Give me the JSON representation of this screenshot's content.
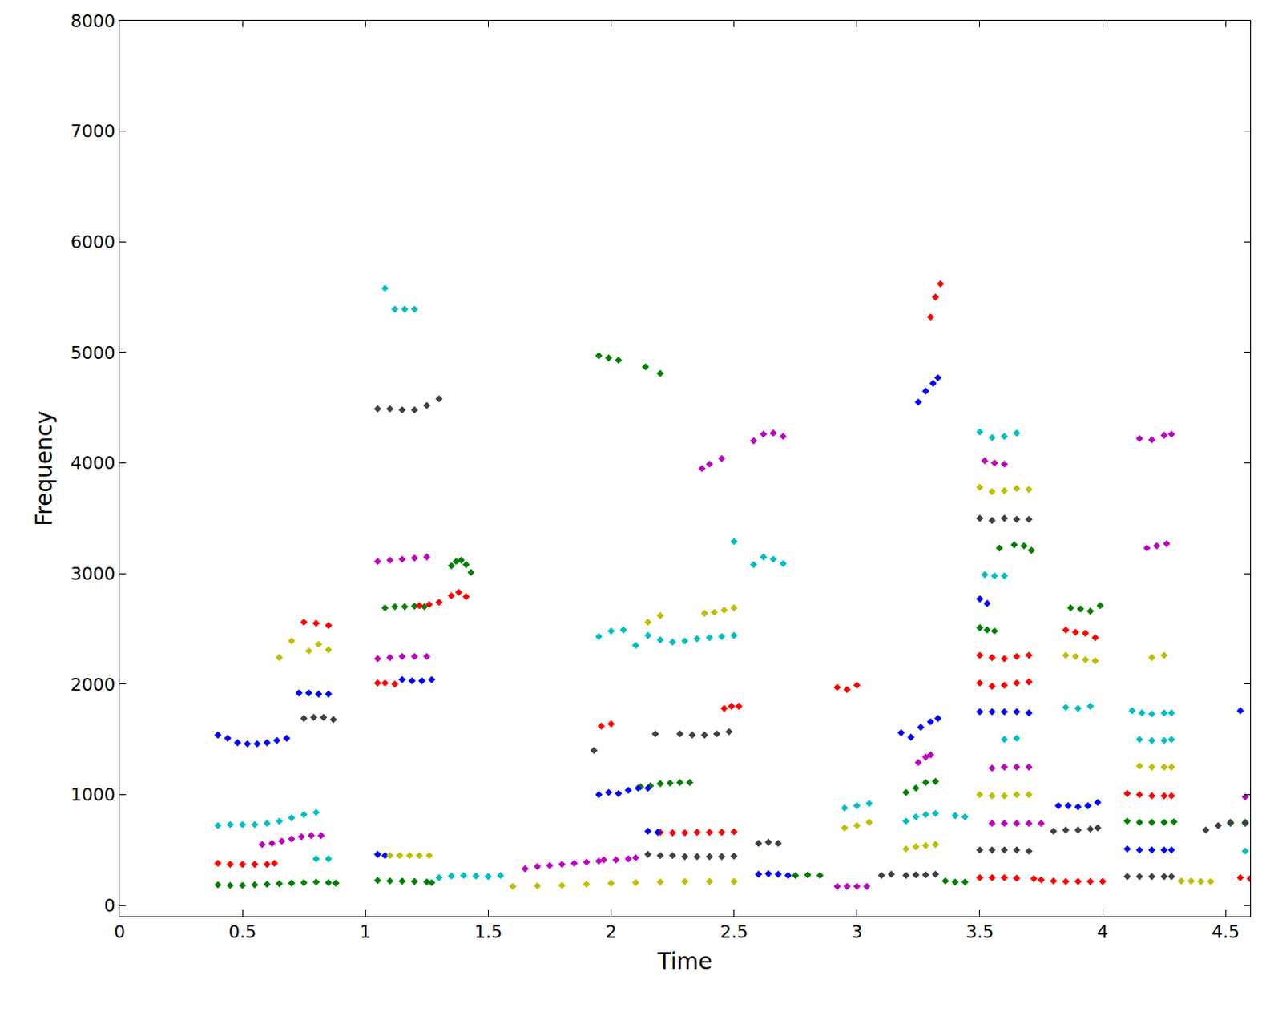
{
  "chart_data": {
    "type": "scatter",
    "x_label": "Time",
    "y_label": "Frequency",
    "xlim": [
      0,
      4.6
    ],
    "ylim": [
      -100,
      8000
    ],
    "xticks": [
      0,
      0.5,
      1,
      1.5,
      2,
      2.5,
      3,
      3.5,
      4,
      4.5
    ],
    "yticks": [
      0,
      1000,
      2000,
      3000,
      4000,
      5000,
      6000,
      7000,
      8000
    ],
    "grid": false,
    "marker": "diamond",
    "series": [
      {
        "color": "#008000",
        "x": [
          0.4,
          0.45,
          0.5,
          0.55,
          0.6,
          0.65,
          0.7,
          0.75,
          0.8,
          0.85,
          0.88,
          1.05,
          1.1,
          1.15,
          1.2,
          1.25,
          1.27,
          1.08,
          1.12,
          1.16,
          1.2,
          1.24,
          1.35,
          1.37,
          1.39,
          1.41,
          1.43,
          2.12,
          2.16,
          2.2,
          2.24,
          2.28,
          2.32,
          2.75,
          2.8,
          2.85,
          3.2,
          3.24,
          3.28,
          3.32,
          3.36,
          3.4,
          3.44,
          3.5,
          3.53,
          3.56,
          3.58,
          3.64,
          3.68,
          3.71,
          3.87,
          3.91,
          3.95,
          3.99,
          1.95,
          1.99,
          2.03,
          2.14,
          2.2,
          4.1,
          4.15,
          4.2,
          4.25,
          4.29,
          4.52,
          4.58
        ],
        "values": [
          185,
          180,
          180,
          185,
          190,
          195,
          200,
          205,
          210,
          205,
          200,
          225,
          220,
          218,
          215,
          212,
          205,
          2690,
          2700,
          2700,
          2705,
          2700,
          3070,
          3110,
          3120,
          3080,
          3010,
          1070,
          1080,
          1100,
          1105,
          1110,
          1110,
          270,
          275,
          270,
          1020,
          1060,
          1110,
          1120,
          220,
          210,
          210,
          2510,
          2490,
          2480,
          3230,
          3260,
          3250,
          3210,
          2690,
          2680,
          2660,
          2710,
          4970,
          4950,
          4930,
          4870,
          4810,
          760,
          750,
          750,
          750,
          755,
          740,
          750
        ]
      },
      {
        "color": "#ff0000",
        "x": [
          0.4,
          0.45,
          0.5,
          0.55,
          0.6,
          0.63,
          0.75,
          0.8,
          0.85,
          1.05,
          1.08,
          1.12,
          1.22,
          1.26,
          1.3,
          1.35,
          1.38,
          1.41,
          1.96,
          2.0,
          2.2,
          2.25,
          2.3,
          2.35,
          2.4,
          2.45,
          2.5,
          2.46,
          2.49,
          2.52,
          2.92,
          2.96,
          3.0,
          3.3,
          3.32,
          3.34,
          3.5,
          3.55,
          3.6,
          3.65,
          3.7,
          3.5,
          3.55,
          3.6,
          3.65,
          3.7,
          3.5,
          3.55,
          3.6,
          3.65,
          3.72,
          3.75,
          3.8,
          3.85,
          3.9,
          3.95,
          4.0,
          3.85,
          3.89,
          3.93,
          3.97,
          4.1,
          4.15,
          4.2,
          4.25,
          4.28,
          4.56,
          4.6
        ],
        "values": [
          380,
          370,
          370,
          370,
          370,
          380,
          2560,
          2550,
          2530,
          2010,
          2010,
          2000,
          2710,
          2720,
          2740,
          2800,
          2830,
          2790,
          1620,
          1640,
          660,
          655,
          655,
          660,
          660,
          660,
          665,
          1780,
          1800,
          1800,
          1970,
          1950,
          1990,
          5320,
          5500,
          5620,
          2260,
          2240,
          2230,
          2250,
          2260,
          2010,
          1980,
          1990,
          2010,
          2020,
          250,
          250,
          250,
          245,
          240,
          230,
          220,
          215,
          215,
          215,
          215,
          2490,
          2470,
          2460,
          2420,
          1010,
          1000,
          990,
          990,
          990,
          250,
          240
        ]
      },
      {
        "color": "#00bfbf",
        "x": [
          0.4,
          0.45,
          0.5,
          0.55,
          0.6,
          0.65,
          0.7,
          0.75,
          0.8,
          0.8,
          0.85,
          1.08,
          1.12,
          1.16,
          1.2,
          1.3,
          1.35,
          1.4,
          1.45,
          1.5,
          1.55,
          1.95,
          2.0,
          2.05,
          2.1,
          2.15,
          2.2,
          2.25,
          2.3,
          2.35,
          2.4,
          2.45,
          2.5,
          2.5,
          2.58,
          2.62,
          2.66,
          2.7,
          2.95,
          3.0,
          3.05,
          3.2,
          3.24,
          3.28,
          3.32,
          3.4,
          3.44,
          3.5,
          3.55,
          3.6,
          3.65,
          3.52,
          3.56,
          3.6,
          3.6,
          3.65,
          3.85,
          3.9,
          3.95,
          4.12,
          4.16,
          4.2,
          4.25,
          4.28,
          4.15,
          4.2,
          4.25,
          4.28,
          4.58
        ],
        "values": [
          720,
          730,
          730,
          730,
          740,
          760,
          790,
          820,
          840,
          420,
          420,
          5580,
          5390,
          5390,
          5390,
          250,
          265,
          270,
          265,
          260,
          270,
          2430,
          2480,
          2490,
          2350,
          2440,
          2400,
          2380,
          2390,
          2410,
          2420,
          2430,
          2440,
          3290,
          3080,
          3150,
          3130,
          3090,
          880,
          900,
          920,
          760,
          800,
          820,
          830,
          810,
          800,
          4280,
          4230,
          4240,
          4270,
          2990,
          2980,
          2980,
          1500,
          1510,
          1790,
          1780,
          1800,
          1760,
          1740,
          1730,
          1740,
          1740,
          1500,
          1490,
          1490,
          1500,
          490
        ]
      },
      {
        "color": "#bf00bf",
        "x": [
          0.58,
          0.62,
          0.66,
          0.7,
          0.74,
          0.78,
          0.82,
          1.05,
          1.1,
          1.15,
          1.2,
          1.25,
          1.05,
          1.1,
          1.15,
          1.2,
          1.25,
          1.65,
          1.7,
          1.75,
          1.8,
          1.85,
          1.9,
          1.95,
          1.97,
          2.02,
          2.07,
          2.1,
          2.58,
          2.62,
          2.66,
          2.7,
          2.92,
          2.96,
          3.0,
          3.04,
          2.37,
          2.4,
          2.45,
          3.25,
          3.28,
          3.3,
          3.55,
          3.6,
          3.65,
          3.7,
          3.75,
          3.55,
          3.6,
          3.65,
          3.7,
          3.52,
          3.56,
          3.6,
          4.15,
          4.2,
          4.25,
          4.28,
          4.18,
          4.22,
          4.26,
          4.58
        ],
        "values": [
          550,
          560,
          580,
          600,
          620,
          630,
          630,
          3110,
          3120,
          3130,
          3140,
          3150,
          2230,
          2240,
          2250,
          2250,
          2250,
          330,
          350,
          360,
          370,
          380,
          390,
          400,
          410,
          410,
          420,
          430,
          4200,
          4260,
          4270,
          4240,
          170,
          170,
          170,
          170,
          3950,
          3990,
          4040,
          1290,
          1340,
          1360,
          740,
          740,
          740,
          740,
          740,
          1240,
          1250,
          1250,
          1250,
          4020,
          4000,
          3990,
          4220,
          4210,
          4250,
          4260,
          3230,
          3250,
          3270,
          980
        ]
      },
      {
        "color": "#0000ff",
        "x": [
          0.4,
          0.44,
          0.48,
          0.52,
          0.56,
          0.6,
          0.64,
          0.68,
          0.73,
          0.77,
          0.81,
          0.85,
          1.05,
          1.08,
          1.15,
          1.19,
          1.23,
          1.27,
          1.95,
          1.99,
          2.03,
          2.07,
          2.11,
          2.15,
          2.15,
          2.19,
          2.6,
          2.64,
          2.68,
          2.72,
          3.25,
          3.28,
          3.31,
          3.33,
          3.18,
          3.22,
          3.26,
          3.3,
          3.33,
          3.5,
          3.55,
          3.6,
          3.65,
          3.7,
          3.5,
          3.53,
          3.82,
          3.86,
          3.9,
          3.94,
          3.98,
          4.1,
          4.15,
          4.2,
          4.25,
          4.28,
          4.56
        ],
        "values": [
          1540,
          1510,
          1470,
          1460,
          1460,
          1470,
          1490,
          1510,
          1920,
          1920,
          1910,
          1910,
          460,
          450,
          2040,
          2030,
          2030,
          2040,
          1000,
          1020,
          1010,
          1040,
          1060,
          1060,
          670,
          660,
          280,
          285,
          280,
          270,
          4550,
          4650,
          4720,
          4770,
          1560,
          1520,
          1610,
          1660,
          1690,
          1750,
          1750,
          1750,
          1750,
          1740,
          2770,
          2730,
          900,
          900,
          890,
          900,
          930,
          510,
          500,
          500,
          500,
          500,
          1760
        ]
      },
      {
        "color": "#bfbf00",
        "x": [
          0.65,
          0.7,
          0.77,
          0.81,
          0.85,
          1.1,
          1.14,
          1.18,
          1.22,
          1.26,
          1.6,
          1.7,
          1.8,
          1.9,
          2.0,
          2.1,
          2.2,
          2.3,
          2.4,
          2.5,
          2.15,
          2.2,
          2.38,
          2.42,
          2.46,
          2.5,
          2.95,
          3.0,
          3.05,
          3.2,
          3.24,
          3.28,
          3.32,
          3.5,
          3.55,
          3.6,
          3.65,
          3.7,
          3.5,
          3.55,
          3.6,
          3.65,
          3.7,
          3.85,
          3.89,
          3.93,
          3.97,
          4.15,
          4.2,
          4.25,
          4.28,
          4.2,
          4.25,
          4.32,
          4.36,
          4.4,
          4.44
        ],
        "values": [
          2240,
          2390,
          2300,
          2360,
          2310,
          450,
          450,
          450,
          450,
          450,
          170,
          175,
          180,
          190,
          200,
          205,
          210,
          215,
          215,
          215,
          2560,
          2620,
          2640,
          2650,
          2670,
          2690,
          700,
          720,
          750,
          510,
          530,
          540,
          550,
          1000,
          990,
          990,
          1000,
          1000,
          3780,
          3740,
          3750,
          3770,
          3760,
          2260,
          2250,
          2220,
          2210,
          1260,
          1250,
          1250,
          1250,
          2240,
          2260,
          220,
          220,
          215,
          215
        ]
      },
      {
        "color": "#404040",
        "x": [
          0.75,
          0.79,
          0.83,
          0.87,
          1.05,
          1.1,
          1.15,
          1.2,
          1.25,
          1.3,
          1.93,
          2.18,
          2.28,
          2.33,
          2.38,
          2.43,
          2.48,
          2.15,
          2.2,
          2.25,
          2.3,
          2.35,
          2.4,
          2.45,
          2.5,
          2.6,
          2.64,
          2.68,
          3.1,
          3.14,
          3.2,
          3.24,
          3.28,
          3.32,
          3.5,
          3.55,
          3.6,
          3.65,
          3.7,
          3.5,
          3.55,
          3.6,
          3.65,
          3.7,
          3.8,
          3.85,
          3.9,
          3.95,
          3.98,
          4.1,
          4.15,
          4.2,
          4.25,
          4.28,
          4.42,
          4.47,
          4.52,
          4.58
        ],
        "values": [
          1690,
          1700,
          1700,
          1680,
          4490,
          4490,
          4480,
          4480,
          4520,
          4580,
          1400,
          1550,
          1550,
          1540,
          1540,
          1550,
          1570,
          460,
          450,
          450,
          440,
          440,
          440,
          440,
          445,
          560,
          570,
          560,
          270,
          280,
          270,
          275,
          275,
          280,
          3500,
          3480,
          3500,
          3490,
          3490,
          500,
          500,
          500,
          500,
          490,
          670,
          680,
          680,
          690,
          700,
          260,
          260,
          260,
          260,
          260,
          680,
          720,
          750,
          740
        ]
      }
    ]
  }
}
